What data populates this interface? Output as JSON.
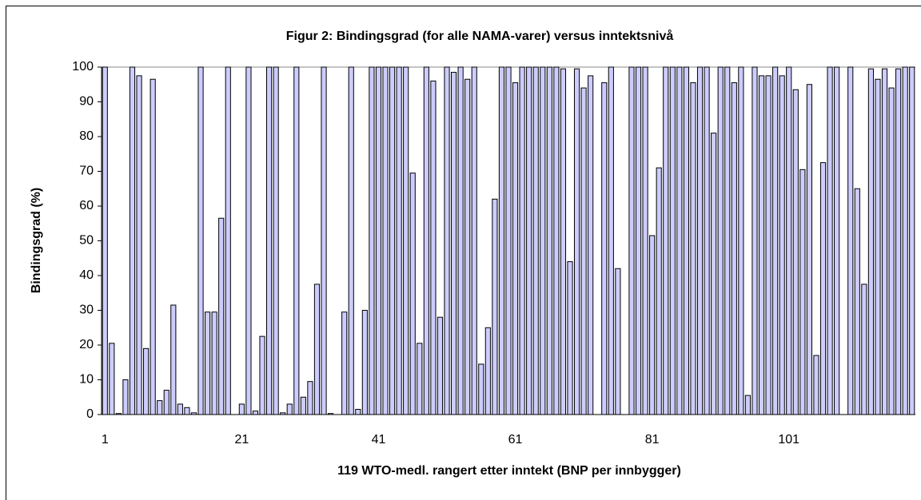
{
  "chart_data": {
    "type": "bar",
    "title": "Figur 2: Bindingsgrad (for alle NAMA-varer) versus inntektsnivå",
    "x_label": "119 WTO-medl. rangert etter inntekt (BNP per innbygger)",
    "y_label": "Bindingsgrad (%)",
    "categories": [
      1,
      null,
      null,
      null,
      null,
      null,
      null,
      null,
      null,
      null,
      null,
      null,
      null,
      null,
      null,
      null,
      null,
      null,
      null,
      null,
      21,
      null,
      null,
      null,
      null,
      null,
      null,
      null,
      null,
      null,
      null,
      null,
      null,
      null,
      null,
      null,
      null,
      null,
      null,
      null,
      41,
      null,
      null,
      null,
      null,
      null,
      null,
      null,
      null,
      null,
      null,
      null,
      null,
      null,
      null,
      null,
      null,
      null,
      null,
      null,
      61,
      null,
      null,
      null,
      null,
      null,
      null,
      null,
      null,
      null,
      null,
      null,
      null,
      null,
      null,
      null,
      null,
      null,
      null,
      null,
      81,
      null,
      null,
      null,
      null,
      null,
      null,
      null,
      null,
      null,
      null,
      null,
      null,
      null,
      null,
      null,
      null,
      null,
      null,
      null,
      101,
      null,
      null,
      null,
      null,
      null,
      null,
      null,
      null,
      null,
      null,
      null,
      null,
      null,
      null,
      null,
      null,
      null,
      null
    ],
    "values": [
      100,
      20.5,
      0.3,
      10,
      100,
      97.5,
      19,
      96.5,
      4,
      7,
      31.5,
      3,
      2,
      0.5,
      100,
      29.5,
      29.5,
      56.5,
      100,
      0,
      3,
      100,
      1,
      22.5,
      100,
      100,
      0.5,
      3,
      100,
      5,
      9.5,
      37.5,
      100,
      0.3,
      0,
      29.5,
      100,
      1.5,
      30,
      100,
      100,
      100,
      100,
      100,
      100,
      69.5,
      20.5,
      100,
      96,
      28,
      100,
      98.5,
      100,
      96.5,
      100,
      14.5,
      25,
      62,
      100,
      100,
      95.5,
      100,
      100,
      100,
      100,
      100,
      100,
      99.5,
      44,
      99.5,
      94,
      97.5,
      0,
      95.5,
      100,
      42,
      0,
      100,
      100,
      100,
      51.5,
      71,
      100,
      100,
      100,
      100,
      95.5,
      100,
      100,
      81,
      100,
      100,
      95.5,
      100,
      5.5,
      100,
      97.5,
      97.5,
      100,
      97.5,
      100,
      93.5,
      70.5,
      95,
      17,
      72.5,
      100,
      100,
      0,
      100,
      65,
      37.5,
      99.5,
      96.5,
      99.5,
      94,
      99.5,
      100,
      100
    ],
    "color": "#ccccff",
    "ylim": [
      0,
      100
    ],
    "yticks": [
      0,
      10,
      20,
      30,
      40,
      50,
      60,
      70,
      80,
      90,
      100
    ],
    "grid": false
  }
}
